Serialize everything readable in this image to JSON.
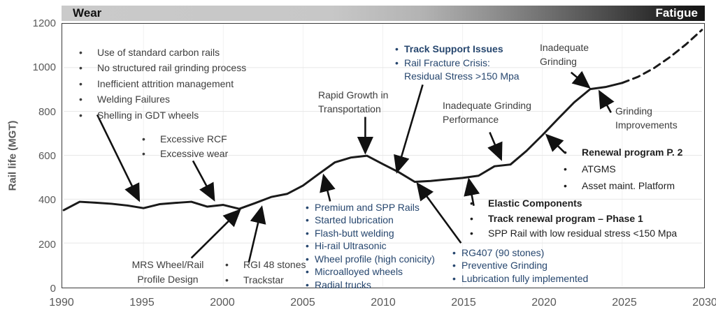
{
  "title_bar": {
    "left_label": "Wear",
    "right_label": "Fatigue"
  },
  "chart_data": {
    "type": "line",
    "title": "",
    "xlabel": "",
    "ylabel": "Rail life (MGT)",
    "xlim": [
      1990,
      2030
    ],
    "ylim": [
      0,
      1200
    ],
    "x_ticks": [
      1990,
      1995,
      2000,
      2005,
      2010,
      2015,
      2020,
      2025,
      2030
    ],
    "y_ticks": [
      0,
      200,
      400,
      600,
      800,
      1000,
      1200
    ],
    "grid": "on",
    "series": [
      {
        "name": "rail-life-historical",
        "style": "solid",
        "x": [
          1990,
          1991,
          1992,
          1993,
          1994,
          1995,
          1996,
          1997,
          1998,
          1999,
          2000,
          2001,
          2002,
          2003,
          2004,
          2005,
          2006,
          2007,
          2008,
          2009,
          2010,
          2011,
          2012,
          2013,
          2014,
          2015,
          2016,
          2017,
          2018,
          2019,
          2020,
          2021,
          2022,
          2023,
          2024,
          2025
        ],
        "y": [
          350,
          388,
          384,
          379,
          371,
          359,
          377,
          383,
          388,
          366,
          374,
          356,
          382,
          410,
          424,
          462,
          516,
          568,
          590,
          598,
          560,
          523,
          479,
          483,
          490,
          497,
          507,
          550,
          558,
          620,
          692,
          768,
          842,
          902,
          912,
          930
        ]
      },
      {
        "name": "rail-life-projection",
        "style": "dashed",
        "x": [
          2025,
          2026,
          2027,
          2028,
          2029,
          2030
        ],
        "y": [
          930,
          958,
          998,
          1048,
          1106,
          1172
        ]
      }
    ],
    "arrows": [
      {
        "name": "early-problems-arrow",
        "from": [
          1992.1,
          785
        ],
        "to": [
          1994.7,
          398
        ]
      },
      {
        "name": "excessive-arrow",
        "from": [
          1998.1,
          575
        ],
        "to": [
          1999.4,
          400
        ]
      },
      {
        "name": "mrs-arrow",
        "from": [
          1998.0,
          132
        ],
        "to": [
          2001.0,
          348
        ]
      },
      {
        "name": "rgi-arrow",
        "from": [
          2001.6,
          112
        ],
        "to": [
          2002.4,
          360
        ]
      },
      {
        "name": "rapid-growth-arrow",
        "from": [
          2008.9,
          775
        ],
        "to": [
          2008.9,
          615
        ]
      },
      {
        "name": "track-support-arrow",
        "from": [
          2012.5,
          922
        ],
        "to": [
          2010.9,
          528
        ]
      },
      {
        "name": "premium-arrow",
        "from": [
          2006.7,
          390
        ],
        "to": [
          2006.3,
          505
        ]
      },
      {
        "name": "rg407-arrow",
        "from": [
          2014.9,
          200
        ],
        "to": [
          2012.2,
          468
        ]
      },
      {
        "name": "elastic-arrow",
        "from": [
          2015.7,
          370
        ],
        "to": [
          2015.4,
          487
        ]
      },
      {
        "name": "inadequate-performance-arrow",
        "from": [
          2016.7,
          705
        ],
        "to": [
          2017.4,
          585
        ]
      },
      {
        "name": "renewal-arrow",
        "from": [
          2021.4,
          612
        ],
        "to": [
          2020.3,
          690
        ]
      },
      {
        "name": "inadequate-grinding-arrow",
        "from": [
          2021.8,
          978
        ],
        "to": [
          2022.9,
          912
        ]
      },
      {
        "name": "grinding-improvements-arrow",
        "from": [
          2024.3,
          795
        ],
        "to": [
          2023.6,
          888
        ]
      }
    ],
    "annotations": [
      {
        "name": "early-problems-list",
        "x": 113,
        "y": 64,
        "color": "dark",
        "gap": "wide",
        "lh": 1.6,
        "items": [
          {
            "text": "Use of standard carbon rails",
            "bullet": true
          },
          {
            "text": "No structured rail grinding process",
            "bullet": true
          },
          {
            "text": "Inefficient attrition management",
            "bullet": true
          },
          {
            "text": "Welding Failures",
            "bullet": true
          },
          {
            "text": "Shelling in GDT wheels",
            "bullet": true
          }
        ]
      },
      {
        "name": "excessive-list",
        "x": 203,
        "y": 189,
        "color": "dark",
        "gap": "wide",
        "lh": 1.5,
        "items": [
          {
            "text": "Excessive RCF",
            "bullet": true
          },
          {
            "text": "Excessive wear",
            "bullet": true
          }
        ]
      },
      {
        "name": "mrs-label",
        "x": 240,
        "y": 369,
        "color": "dark",
        "align": "center",
        "lh": 1.5,
        "items": [
          {
            "text": "MRS Wheel/Rail"
          },
          {
            "text": "Profile Design"
          }
        ]
      },
      {
        "name": "rgi-list",
        "x": 322,
        "y": 369,
        "color": "dark",
        "gap": "wide",
        "lh": 1.55,
        "items": [
          {
            "text": "RGI 48 stones",
            "bullet": true
          },
          {
            "text": "Trackstar",
            "bullet": true
          }
        ]
      },
      {
        "name": "rapid-growth-label",
        "x": 455,
        "y": 126,
        "color": "dark",
        "lh": 1.45,
        "items": [
          {
            "text": "Rapid Growth in"
          },
          {
            "text": "Transportation"
          }
        ]
      },
      {
        "name": "track-support-list",
        "x": 565,
        "y": 61,
        "color": "navy",
        "gap": "narrow",
        "lh": 1.4,
        "items": [
          {
            "text": "Track Support Issues",
            "bullet": true,
            "bold": true
          },
          {
            "text": "Rail Fracture Crisis:",
            "bullet": true
          },
          {
            "text": "Residual Stress >150 Mpa",
            "cont": true
          }
        ]
      },
      {
        "name": "premium-list",
        "x": 437,
        "y": 288,
        "color": "navy",
        "gap": "narrow",
        "lh": 1.32,
        "items": [
          {
            "text": "Premium and SPP Rails",
            "bullet": true
          },
          {
            "text": "Started lubrication",
            "bullet": true
          },
          {
            "text": "Flash-butt welding",
            "bullet": true
          },
          {
            "text": "Hi-rail Ultrasonic",
            "bullet": true
          },
          {
            "text": "Wheel profile (high conicity)",
            "bullet": true
          },
          {
            "text": "Microalloyed wheels",
            "bullet": true
          },
          {
            "text": "Radial trucks",
            "bullet": true
          }
        ]
      },
      {
        "name": "rg407-list",
        "x": 647,
        "y": 353,
        "color": "navy",
        "gap": "narrow",
        "lh": 1.32,
        "items": [
          {
            "text": "RG407 (90 stones)",
            "bullet": true
          },
          {
            "text": "Preventive Grinding",
            "bullet": true
          },
          {
            "text": "Lubrication fully implemented",
            "bullet": true
          }
        ]
      },
      {
        "name": "elastic-list",
        "x": 672,
        "y": 281,
        "color": "black",
        "gap": "wide",
        "lh": 1.55,
        "items": [
          {
            "text": "Elastic Components",
            "bullet": true,
            "bold": true
          },
          {
            "text": "Track renewal program – Phase 1",
            "bullet": true,
            "bold": true
          },
          {
            "text": "SPP Rail with low residual stress <150 Mpa",
            "bullet": true
          }
        ]
      },
      {
        "name": "renewal-list",
        "x": 806,
        "y": 207,
        "color": "black",
        "gap": "wide",
        "lh": 1.7,
        "items": [
          {
            "text": "Renewal program P. 2",
            "bullet": true,
            "bold": true
          },
          {
            "text": "ATGMS",
            "bullet": true
          },
          {
            "text": "Asset maint. Platform",
            "bullet": true
          }
        ]
      },
      {
        "name": "inadequate-grinding-label",
        "x": 772,
        "y": 58,
        "color": "dark",
        "lh": 1.45,
        "items": [
          {
            "text": "Inadequate"
          },
          {
            "text": "Grinding"
          }
        ]
      },
      {
        "name": "inadequate-performance-label",
        "x": 633,
        "y": 141,
        "color": "dark",
        "lh": 1.45,
        "items": [
          {
            "text": "Inadequate Grinding"
          },
          {
            "text": "Performance"
          }
        ]
      },
      {
        "name": "grinding-improvements-label",
        "x": 880,
        "y": 149,
        "color": "dark",
        "lh": 1.45,
        "items": [
          {
            "text": "Grinding"
          },
          {
            "text": "Improvements"
          }
        ]
      }
    ],
    "line_color": "#1a1a1a",
    "grid_color": "#e7e7e7"
  }
}
